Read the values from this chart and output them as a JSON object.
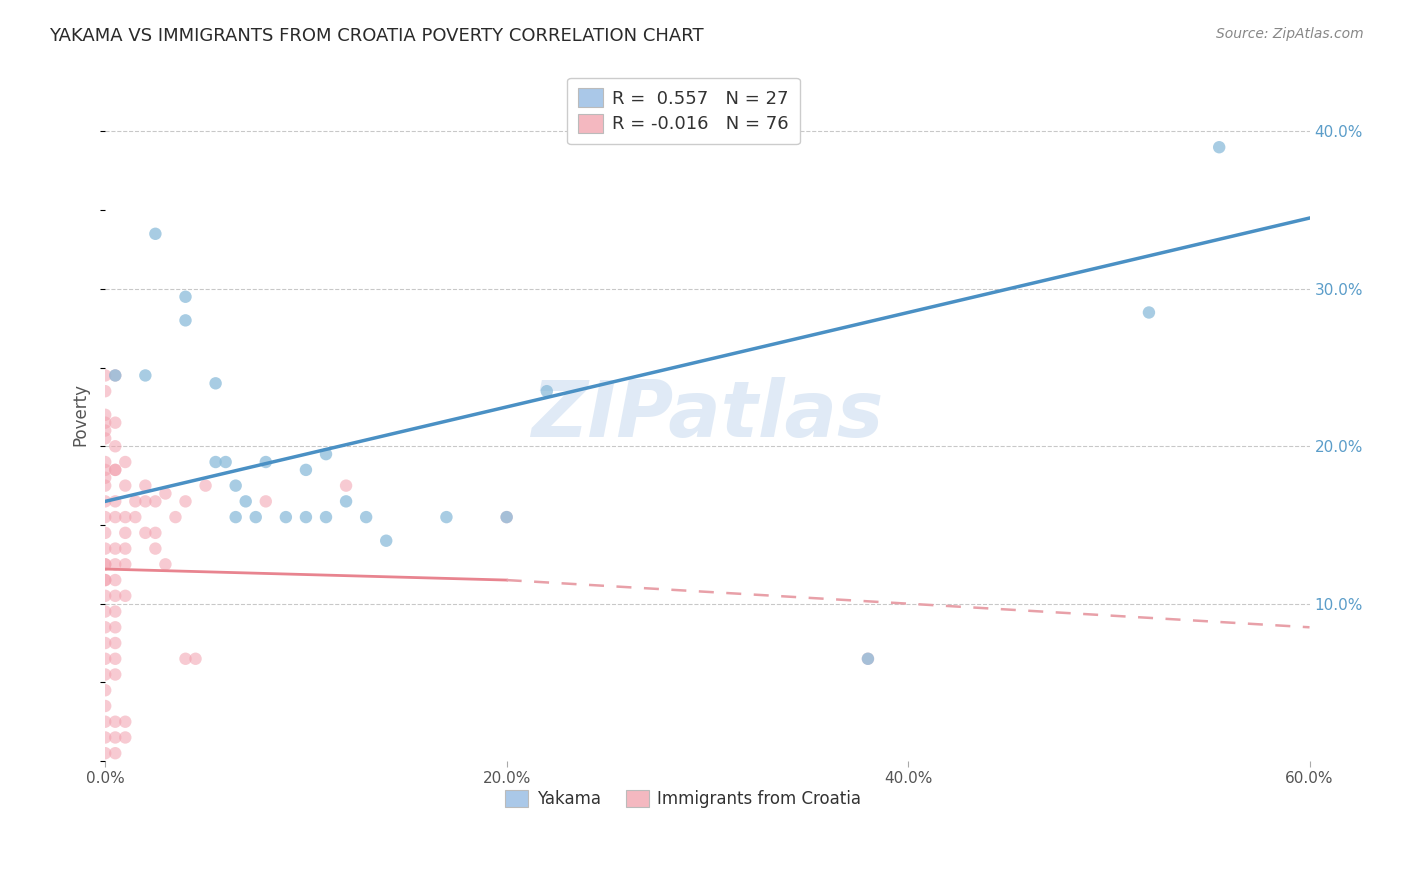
{
  "title": "YAKAMA VS IMMIGRANTS FROM CROATIA POVERTY CORRELATION CHART",
  "source": "Source: ZipAtlas.com",
  "ylabel": "Poverty",
  "xlim": [
    0.0,
    0.6
  ],
  "ylim": [
    0.0,
    0.44
  ],
  "xtick_labels": [
    "0.0%",
    "20.0%",
    "40.0%",
    "60.0%"
  ],
  "xtick_vals": [
    0.0,
    0.2,
    0.4,
    0.6
  ],
  "ytick_labels_right": [
    "10.0%",
    "20.0%",
    "30.0%",
    "40.0%"
  ],
  "ytick_vals_right": [
    0.1,
    0.2,
    0.3,
    0.4
  ],
  "legend_label1": "Yakama",
  "legend_label2": "Immigrants from Croatia",
  "R1": "0.557",
  "N1": "27",
  "R2": "-0.016",
  "N2": "76",
  "color_blue_scatter": "#8bbcda",
  "color_pink_scatter": "#f2a0ad",
  "color_blue_line": "#4a90c4",
  "color_pink_line_solid": "#e8848f",
  "color_pink_line_dash": "#e8a0a8",
  "color_legend_blue_fill": "#aac8e8",
  "color_legend_pink_fill": "#f4b8c0",
  "watermark": "ZIPatlas",
  "grid_color": "#bbbbbb",
  "blue_line_y0": 0.165,
  "blue_line_y1": 0.345,
  "pink_line_solid_x0": 0.0,
  "pink_line_solid_x1": 0.2,
  "pink_line_solid_y0": 0.122,
  "pink_line_solid_y1": 0.115,
  "pink_line_dash_x0": 0.2,
  "pink_line_dash_x1": 0.6,
  "pink_line_dash_y0": 0.115,
  "pink_line_dash_y1": 0.085,
  "yakama_points": [
    [
      0.005,
      0.245
    ],
    [
      0.02,
      0.245
    ],
    [
      0.025,
      0.335
    ],
    [
      0.04,
      0.295
    ],
    [
      0.04,
      0.28
    ],
    [
      0.055,
      0.24
    ],
    [
      0.055,
      0.19
    ],
    [
      0.06,
      0.19
    ],
    [
      0.065,
      0.175
    ],
    [
      0.065,
      0.155
    ],
    [
      0.07,
      0.165
    ],
    [
      0.075,
      0.155
    ],
    [
      0.08,
      0.19
    ],
    [
      0.09,
      0.155
    ],
    [
      0.1,
      0.185
    ],
    [
      0.1,
      0.155
    ],
    [
      0.11,
      0.195
    ],
    [
      0.11,
      0.155
    ],
    [
      0.12,
      0.165
    ],
    [
      0.13,
      0.155
    ],
    [
      0.14,
      0.14
    ],
    [
      0.17,
      0.155
    ],
    [
      0.2,
      0.155
    ],
    [
      0.22,
      0.235
    ],
    [
      0.38,
      0.065
    ],
    [
      0.52,
      0.285
    ],
    [
      0.555,
      0.39
    ]
  ],
  "croatia_points": [
    [
      0.0,
      0.245
    ],
    [
      0.0,
      0.235
    ],
    [
      0.0,
      0.22
    ],
    [
      0.0,
      0.215
    ],
    [
      0.0,
      0.21
    ],
    [
      0.0,
      0.205
    ],
    [
      0.0,
      0.19
    ],
    [
      0.0,
      0.185
    ],
    [
      0.0,
      0.18
    ],
    [
      0.0,
      0.175
    ],
    [
      0.0,
      0.165
    ],
    [
      0.0,
      0.155
    ],
    [
      0.0,
      0.145
    ],
    [
      0.0,
      0.135
    ],
    [
      0.0,
      0.125
    ],
    [
      0.0,
      0.115
    ],
    [
      0.0,
      0.105
    ],
    [
      0.0,
      0.095
    ],
    [
      0.0,
      0.085
    ],
    [
      0.0,
      0.075
    ],
    [
      0.0,
      0.065
    ],
    [
      0.0,
      0.055
    ],
    [
      0.0,
      0.045
    ],
    [
      0.0,
      0.035
    ],
    [
      0.005,
      0.245
    ],
    [
      0.005,
      0.215
    ],
    [
      0.005,
      0.2
    ],
    [
      0.005,
      0.185
    ],
    [
      0.005,
      0.165
    ],
    [
      0.005,
      0.155
    ],
    [
      0.005,
      0.135
    ],
    [
      0.005,
      0.115
    ],
    [
      0.005,
      0.105
    ],
    [
      0.005,
      0.095
    ],
    [
      0.005,
      0.075
    ],
    [
      0.005,
      0.065
    ],
    [
      0.01,
      0.19
    ],
    [
      0.01,
      0.175
    ],
    [
      0.01,
      0.155
    ],
    [
      0.01,
      0.145
    ],
    [
      0.01,
      0.135
    ],
    [
      0.02,
      0.175
    ],
    [
      0.02,
      0.165
    ],
    [
      0.025,
      0.165
    ],
    [
      0.025,
      0.145
    ],
    [
      0.03,
      0.17
    ],
    [
      0.035,
      0.155
    ],
    [
      0.04,
      0.165
    ],
    [
      0.04,
      0.065
    ],
    [
      0.05,
      0.175
    ],
    [
      0.08,
      0.165
    ],
    [
      0.12,
      0.175
    ],
    [
      0.2,
      0.155
    ],
    [
      0.38,
      0.065
    ],
    [
      0.02,
      0.145
    ],
    [
      0.015,
      0.165
    ],
    [
      0.015,
      0.155
    ],
    [
      0.01,
      0.105
    ],
    [
      0.025,
      0.135
    ],
    [
      0.03,
      0.125
    ],
    [
      0.005,
      0.085
    ],
    [
      0.005,
      0.055
    ],
    [
      0.0,
      0.025
    ],
    [
      0.0,
      0.015
    ],
    [
      0.0,
      0.005
    ],
    [
      0.005,
      0.025
    ],
    [
      0.005,
      0.015
    ],
    [
      0.005,
      0.005
    ],
    [
      0.01,
      0.025
    ],
    [
      0.01,
      0.015
    ],
    [
      0.005,
      0.185
    ],
    [
      0.0,
      0.125
    ],
    [
      0.0,
      0.115
    ],
    [
      0.005,
      0.125
    ],
    [
      0.01,
      0.125
    ],
    [
      0.045,
      0.065
    ]
  ]
}
